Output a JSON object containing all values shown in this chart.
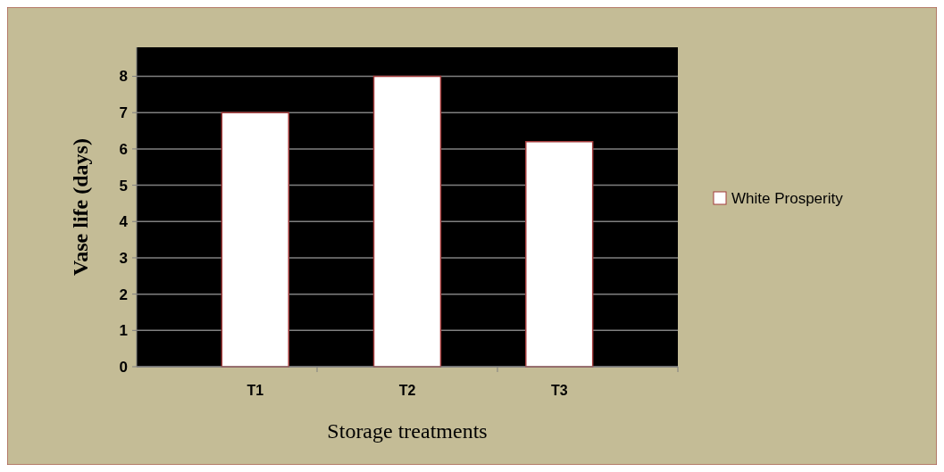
{
  "chart_data": {
    "type": "bar",
    "xlabel": "Storage treatments",
    "ylabel": "Vase life (days)",
    "categories": [
      "T1",
      "T2",
      "T3"
    ],
    "series": [
      {
        "name": "White Prosperity",
        "color": "#ffffff",
        "values": [
          7,
          8,
          6.2
        ]
      }
    ],
    "ylim": [
      0,
      8.8
    ],
    "yticks": [
      0,
      1,
      2,
      3,
      4,
      5,
      6,
      7,
      8
    ],
    "grid": "y",
    "legend": "right"
  }
}
